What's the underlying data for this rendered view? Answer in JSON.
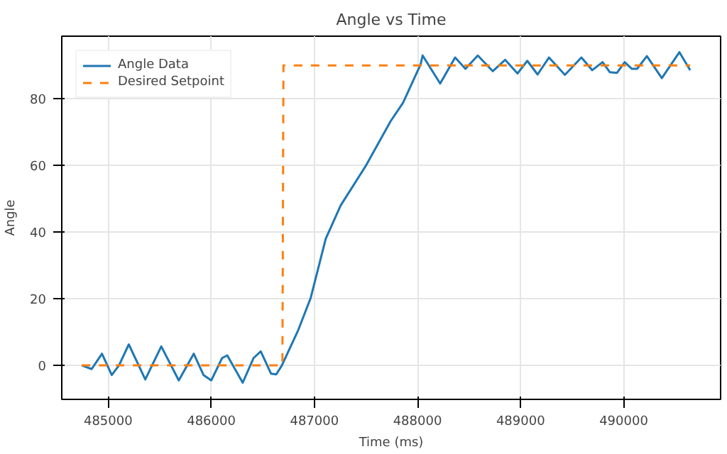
{
  "chart_data": {
    "type": "line",
    "title": "Angle vs Time",
    "xlabel": "Time (ms)",
    "ylabel": "Angle",
    "xlim": [
      484550,
      490940
    ],
    "ylim": [
      -10.2,
      98.8
    ],
    "xticks": [
      485000,
      486000,
      487000,
      488000,
      489000,
      490000
    ],
    "yticks": [
      0,
      20,
      40,
      60,
      80
    ],
    "grid": true,
    "legend": "top left",
    "series": [
      {
        "name": "Angle Data",
        "color": "#1f77b4",
        "line_style": "solid",
        "x": [
          484744,
          484840,
          484940,
          485035,
          485105,
          485200,
          485360,
          485515,
          485685,
          485830,
          485925,
          486000,
          486105,
          486155,
          486305,
          486410,
          486480,
          486580,
          486630,
          486685,
          486845,
          486965,
          487110,
          487255,
          487495,
          487740,
          487860,
          488030,
          488050,
          488220,
          488365,
          488465,
          488585,
          488730,
          488850,
          488970,
          489065,
          489165,
          489275,
          489430,
          489590,
          489695,
          489795,
          489865,
          489935,
          490010,
          490080,
          490130,
          490225,
          490370,
          490540,
          490645
        ],
        "values": [
          0,
          -1.1,
          3.5,
          -2.9,
          0,
          6.3,
          -4.2,
          5.7,
          -4.5,
          3.5,
          -2.9,
          -4.5,
          2.2,
          3,
          -5.2,
          2.2,
          4.2,
          -2.5,
          -2.7,
          0,
          10.7,
          20.3,
          38,
          48,
          59.7,
          73.3,
          78.8,
          90.3,
          93,
          84.6,
          92.4,
          89,
          93,
          88.3,
          91.7,
          87.6,
          91.4,
          87.3,
          92.4,
          87.2,
          92.4,
          88.6,
          91,
          88,
          87.8,
          91,
          89,
          89,
          92.8,
          86.2,
          94,
          88.6
        ]
      },
      {
        "name": "Desired Setpoint",
        "color": "#ff7f0e",
        "line_style": "dashed",
        "x": [
          484744,
          486690,
          486700,
          490645
        ],
        "values": [
          0,
          0,
          90,
          90
        ]
      }
    ]
  }
}
